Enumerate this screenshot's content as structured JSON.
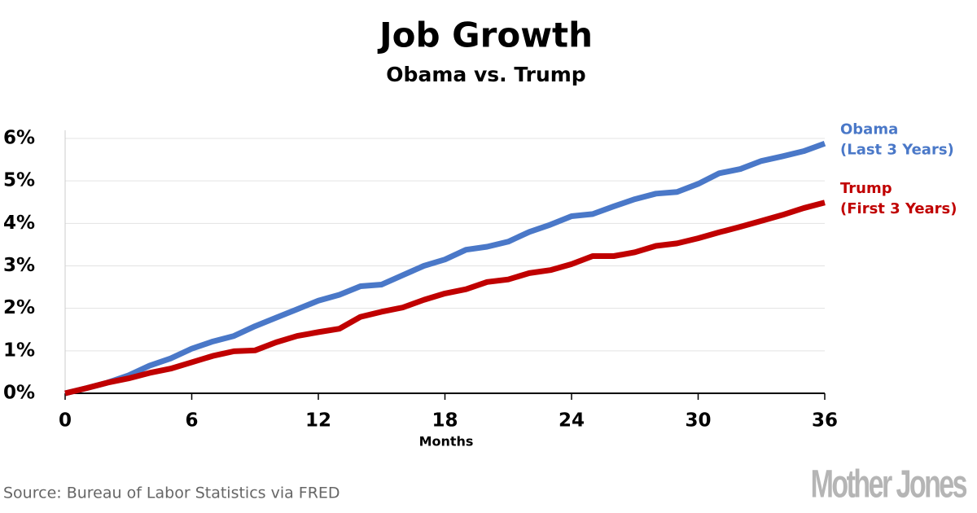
{
  "chart_data": {
    "type": "line",
    "title": "Job Growth",
    "subtitle": "Obama vs. Trump",
    "x_label": "Months",
    "x": [
      0,
      1,
      2,
      3,
      4,
      5,
      6,
      7,
      8,
      9,
      10,
      11,
      12,
      13,
      14,
      15,
      16,
      17,
      18,
      19,
      20,
      21,
      22,
      23,
      24,
      25,
      26,
      27,
      28,
      29,
      30,
      31,
      32,
      33,
      34,
      35,
      36
    ],
    "series": [
      {
        "name": "Obama",
        "note": "(Last 3 Years)",
        "color": "#4a78c8",
        "values": [
          0,
          0.12,
          0.25,
          0.42,
          0.65,
          0.82,
          1.05,
          1.22,
          1.35,
          1.58,
          1.78,
          1.98,
          2.18,
          2.32,
          2.52,
          2.56,
          2.78,
          3.0,
          3.15,
          3.38,
          3.45,
          3.57,
          3.8,
          3.97,
          4.17,
          4.22,
          4.4,
          4.57,
          4.7,
          4.74,
          4.93,
          5.18,
          5.28,
          5.47,
          5.58,
          5.7,
          5.88
        ]
      },
      {
        "name": "Trump",
        "note": "(First 3 Years)",
        "color": "#c00000",
        "values": [
          0,
          0.12,
          0.25,
          0.35,
          0.48,
          0.58,
          0.73,
          0.88,
          0.99,
          1.01,
          1.2,
          1.35,
          1.44,
          1.52,
          1.8,
          1.92,
          2.02,
          2.2,
          2.35,
          2.45,
          2.62,
          2.68,
          2.83,
          2.9,
          3.04,
          3.23,
          3.23,
          3.32,
          3.47,
          3.53,
          3.65,
          3.79,
          3.92,
          4.06,
          4.2,
          4.36,
          4.49
        ]
      }
    ],
    "xlim": [
      0,
      36
    ],
    "xticks": [
      0,
      6,
      12,
      18,
      24,
      30,
      36
    ],
    "ylim": [
      0,
      6
    ],
    "yticks": [
      {
        "value": 0,
        "label": "0%"
      },
      {
        "value": 1,
        "label": "1%"
      },
      {
        "value": 2,
        "label": "2%"
      },
      {
        "value": 3,
        "label": "3%"
      },
      {
        "value": 4,
        "label": "4%"
      },
      {
        "value": 5,
        "label": "5%"
      },
      {
        "value": 6,
        "label": "6%"
      }
    ],
    "grid": true,
    "source": "Source: Bureau of Labor Statistics via FRED",
    "brand": "Mother Jones"
  }
}
